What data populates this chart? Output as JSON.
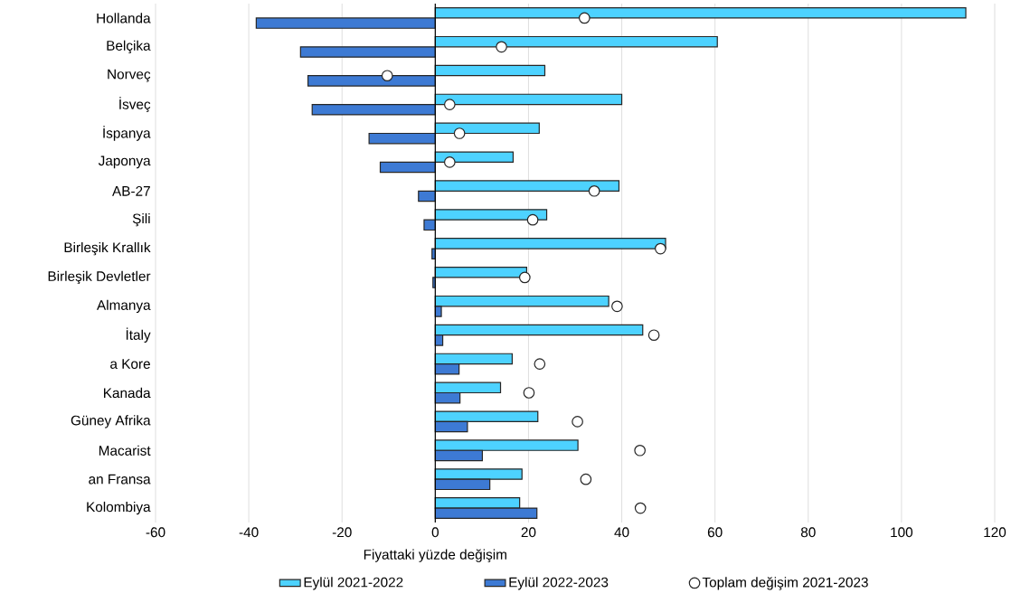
{
  "chart_data": {
    "type": "bar",
    "orientation": "horizontal",
    "xlabel": "Fiyattaki yüzde değişim",
    "categories": [
      "Hollanda",
      "Belçika",
      "Norveç",
      "İsveç",
      "İspanya",
      "Japonya",
      "AB-27",
      "Şili",
      "Birleşik Krallık",
      "Birleşik Devletler",
      "Almanya",
      "İtaly",
      "a Kore",
      "Kanada",
      "Güney Afrika",
      "Macarist",
      "an Fransa",
      "Kolombiya"
    ],
    "series": [
      {
        "name": "Eylül 2021-2022",
        "color": "#4dd2ff",
        "values": [
          113.8,
          60.5,
          23.5,
          40.0,
          22.3,
          16.7,
          39.4,
          23.9,
          49.4,
          19.6,
          37.2,
          44.5,
          16.5,
          14.0,
          22.0,
          30.6,
          18.6,
          18.1
        ]
      },
      {
        "name": "Eylül 2022-2023",
        "color": "#3d7ad4",
        "values": [
          -38.4,
          -28.9,
          -27.3,
          -26.4,
          -14.2,
          -11.8,
          -3.6,
          -2.4,
          -0.7,
          -0.5,
          1.3,
          1.6,
          5.1,
          5.3,
          6.9,
          10.1,
          11.7,
          21.8
        ]
      },
      {
        "name": "Toplam değişim 2021-2023",
        "type": "scatter",
        "marker": "circle",
        "color": "#ffffff",
        "values": [
          32.0,
          14.2,
          -10.3,
          3.1,
          5.2,
          3.1,
          34.1,
          20.9,
          48.3,
          19.2,
          39.0,
          46.9,
          22.4,
          20.1,
          30.5,
          43.9,
          32.3,
          44.0
        ]
      }
    ],
    "xlim": [
      -60,
      120
    ],
    "xticks": [
      -60,
      -40,
      -20,
      0,
      20,
      40,
      60,
      80,
      100,
      120
    ],
    "grid": "x",
    "legend": "bottom"
  }
}
